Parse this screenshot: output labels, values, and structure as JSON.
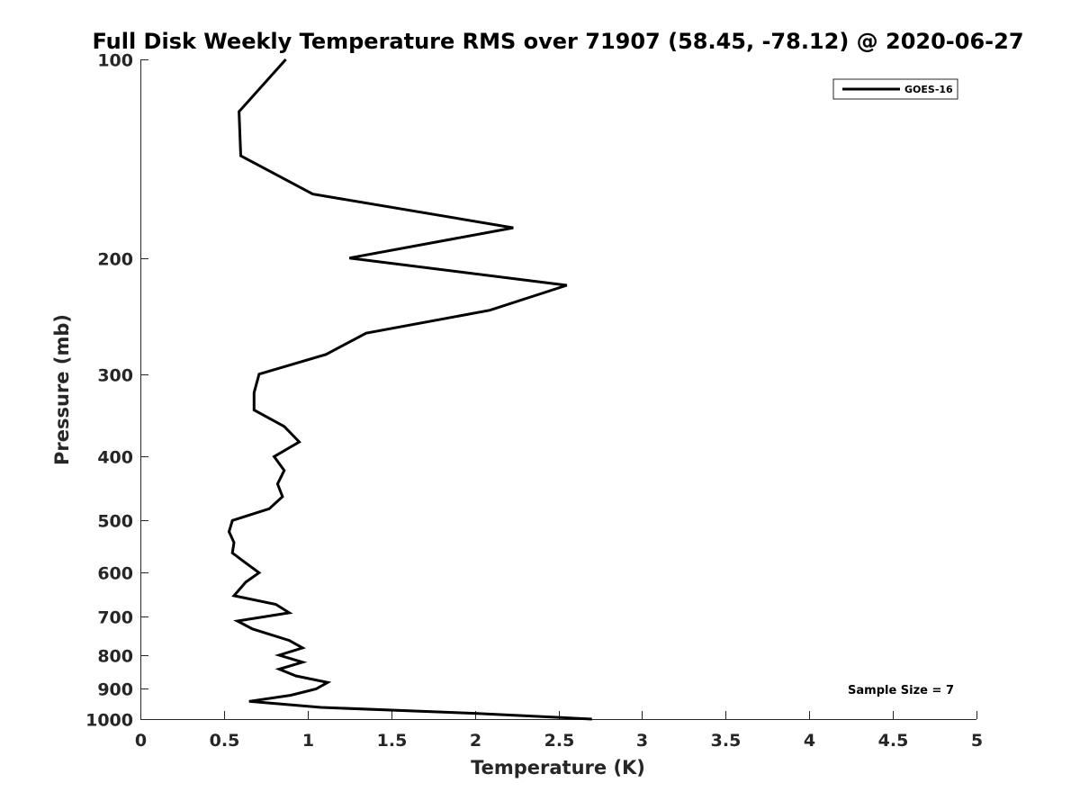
{
  "chart_data": {
    "type": "line",
    "title": "Full Disk Weekly Temperature RMS over 71907 (58.45, -78.12) @ 2020-06-27",
    "xlabel": "Temperature (K)",
    "ylabel": "Pressure (mb)",
    "xlim": [
      0,
      5
    ],
    "ylim": [
      100,
      1000
    ],
    "y_scale": "log",
    "y_reversed": true,
    "x_ticks": [
      "0",
      "0.5",
      "1",
      "1.5",
      "2",
      "2.5",
      "3",
      "3.5",
      "4",
      "4.5",
      "5"
    ],
    "x_tick_values": [
      0,
      0.5,
      1,
      1.5,
      2,
      2.5,
      3,
      3.5,
      4,
      4.5,
      5
    ],
    "y_ticks": [
      "100",
      "200",
      "300",
      "400",
      "500",
      "600",
      "700",
      "800",
      "900",
      "1000"
    ],
    "y_tick_values": [
      100,
      200,
      300,
      400,
      500,
      600,
      700,
      800,
      900,
      1000
    ],
    "grid": false,
    "legend_position": "top-right",
    "series": [
      {
        "name": "GOES-16",
        "color": "#000000",
        "points": [
          [
            0.87,
            100
          ],
          [
            0.59,
            120
          ],
          [
            0.6,
            140
          ],
          [
            1.03,
            160
          ],
          [
            2.23,
            180
          ],
          [
            1.25,
            200
          ],
          [
            2.55,
            220
          ],
          [
            2.09,
            240
          ],
          [
            1.35,
            260
          ],
          [
            1.11,
            280
          ],
          [
            0.71,
            300
          ],
          [
            0.68,
            320
          ],
          [
            0.68,
            340
          ],
          [
            0.86,
            360
          ],
          [
            0.95,
            380
          ],
          [
            0.8,
            400
          ],
          [
            0.86,
            420
          ],
          [
            0.82,
            440
          ],
          [
            0.85,
            460
          ],
          [
            0.77,
            480
          ],
          [
            0.55,
            500
          ],
          [
            0.53,
            520
          ],
          [
            0.56,
            540
          ],
          [
            0.55,
            560
          ],
          [
            0.63,
            580
          ],
          [
            0.71,
            600
          ],
          [
            0.63,
            620
          ],
          [
            0.56,
            650
          ],
          [
            0.81,
            670
          ],
          [
            0.89,
            690
          ],
          [
            0.58,
            710
          ],
          [
            0.67,
            730
          ],
          [
            0.89,
            760
          ],
          [
            0.97,
            780
          ],
          [
            0.83,
            800
          ],
          [
            0.97,
            820
          ],
          [
            0.83,
            840
          ],
          [
            0.93,
            860
          ],
          [
            1.12,
            880
          ],
          [
            1.05,
            900
          ],
          [
            0.9,
            920
          ],
          [
            0.65,
            940
          ],
          [
            1.08,
            960
          ],
          [
            2.0,
            980
          ],
          [
            2.7,
            1000
          ]
        ]
      }
    ],
    "annotation": "Sample Size = 7"
  }
}
